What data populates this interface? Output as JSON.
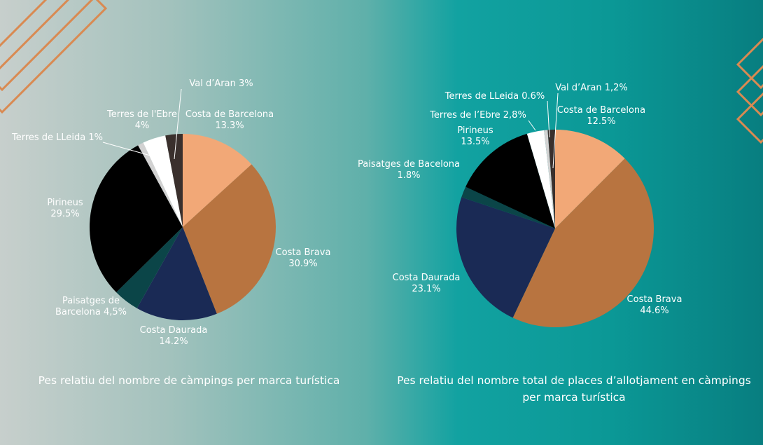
{
  "colors": {
    "Costa de Barcelona": "#f2a877",
    "Costa Brava": "#b87440",
    "Costa Daurada": "#1a2a55",
    "Paisatges de Barcelona": "#0b4548",
    "Pirineus": "#000000",
    "Terres de LLeida": "#d2d2d2",
    "Terres de l'Ebre": "#ffffff",
    "Val d'Aran": "#3a302d",
    "accent_lines": "#d98a52"
  },
  "chart_data": [
    {
      "type": "pie",
      "title": "Pes relatiu del nombre de càmpings per marca turística",
      "slices": [
        {
          "name": "Costa de Barcelona",
          "value": 13.3,
          "label": [
            "Costa de Barcelona",
            "13.3%"
          ]
        },
        {
          "name": "Costa Brava",
          "value": 30.9,
          "label": [
            "Costa Brava",
            "30.9%"
          ]
        },
        {
          "name": "Costa Daurada",
          "value": 14.2,
          "label": [
            "Costa Daurada",
            "14.2%"
          ]
        },
        {
          "name": "Paisatges de Barcelona",
          "value": 4.5,
          "label": [
            "Paisatges de",
            "Barcelona 4,5%"
          ]
        },
        {
          "name": "Pirineus",
          "value": 29.5,
          "label": [
            "Pirineus",
            "29.5%"
          ]
        },
        {
          "name": "Terres de LLeida",
          "value": 1,
          "label": [
            "Terres de LLeida 1%"
          ]
        },
        {
          "name": "Terres de l'Ebre",
          "value": 4,
          "label": [
            "Terres de l'Ebre",
            "4%"
          ]
        },
        {
          "name": "Val d'Aran",
          "value": 3,
          "label": [
            "Val d’Aran 3%"
          ]
        }
      ]
    },
    {
      "type": "pie",
      "title": "Pes relatiu del nombre total de places d’allotjament en càmpings per marca turística",
      "slices": [
        {
          "name": "Costa de Barcelona",
          "value": 12.5,
          "label": [
            "Costa de Barcelona",
            "12.5%"
          ]
        },
        {
          "name": "Costa Brava",
          "value": 44.6,
          "label": [
            "Costa Brava",
            "44.6%"
          ]
        },
        {
          "name": "Costa Daurada",
          "value": 23.1,
          "label": [
            "Costa Daurada",
            "23.1%"
          ]
        },
        {
          "name": "Paisatges de Barcelona",
          "value": 1.8,
          "label": [
            "Paisatges de Bacelona",
            "1.8%"
          ]
        },
        {
          "name": "Pirineus",
          "value": 13.5,
          "label": [
            "Pirineus",
            "13.5%"
          ]
        },
        {
          "name": "Terres de l'Ebre",
          "value": 2.8,
          "label": [
            "Terres de l’Ebre 2,8%"
          ]
        },
        {
          "name": "Terres de LLeida",
          "value": 0.6,
          "label": [
            "Terres de LLeida 0.6%"
          ]
        },
        {
          "name": "Val d'Aran",
          "value": 1.2,
          "label": [
            "Val d’Aran 1,2%"
          ]
        }
      ]
    }
  ]
}
